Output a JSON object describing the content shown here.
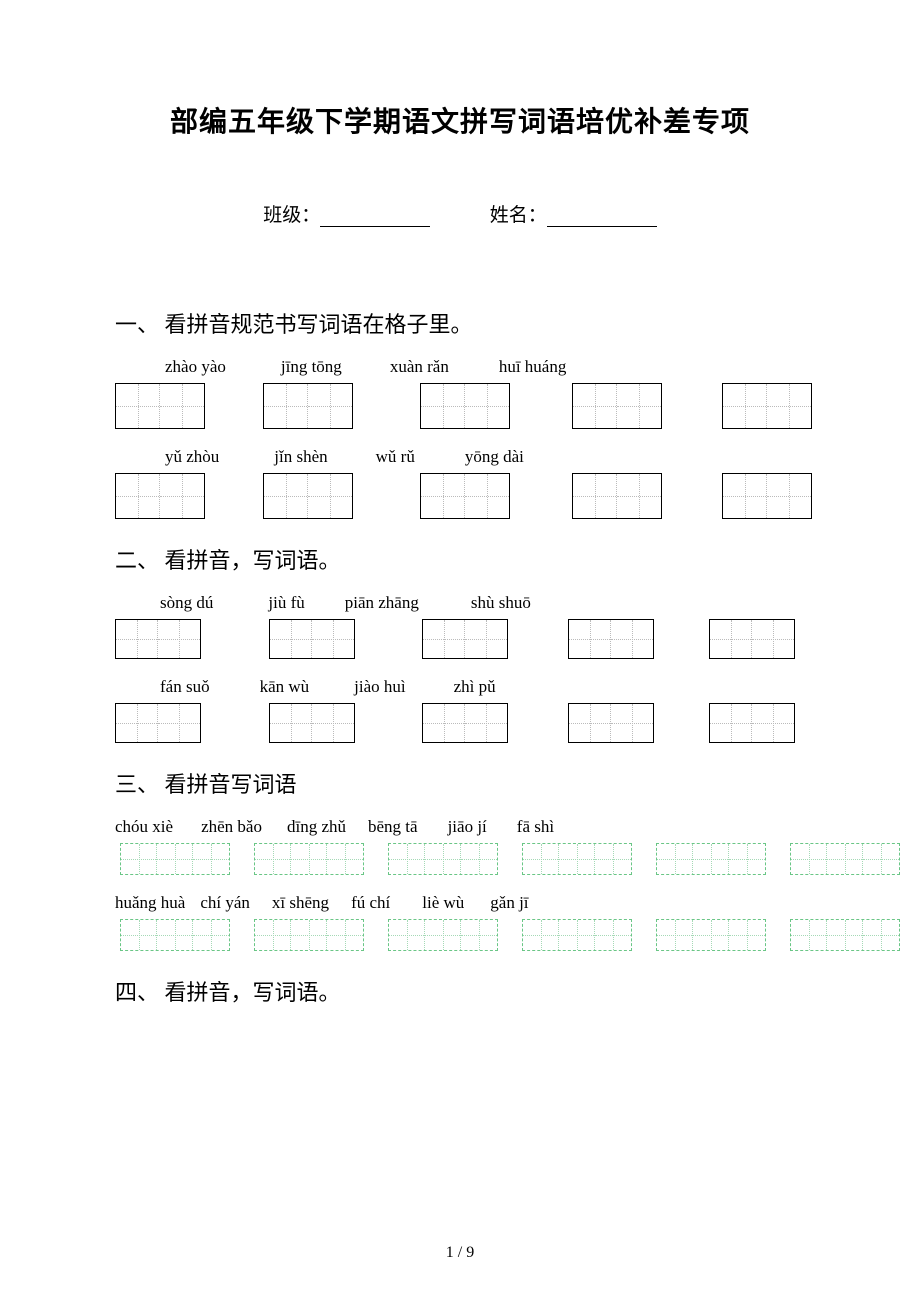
{
  "title": "部编五年级下学期语文拼写词语培优补差专项",
  "info": {
    "class_label": "班级：",
    "name_label": "姓名："
  },
  "sections": {
    "s1": {
      "heading": "一、 看拼音规范书写词语在格子里。",
      "row1": [
        "zhào yào",
        "jīng tōng",
        "xuàn rǎn",
        "huī huáng"
      ],
      "row2": [
        "yǔ zhòu",
        "jǐn shèn",
        "wǔ  rǔ",
        "yōng dài"
      ]
    },
    "s2": {
      "heading": "二、 看拼音，写词语。",
      "row1": [
        "sòng dú",
        "jiù fù",
        "piān zhāng",
        "shù shuō"
      ],
      "row2": [
        "fán suǒ",
        "kān wù",
        "jiào huì",
        "zhì pǔ"
      ]
    },
    "s3": {
      "heading": "三、 看拼音写词语",
      "row1": [
        "chóu xiè",
        "zhēn bǎo",
        "dīng zhǔ",
        "bēng tā",
        "jiāo jí",
        "fā shì"
      ],
      "row2": [
        "huǎng huà",
        "chí yán",
        "xī shēng",
        "fú chí",
        "liè wù",
        "gǎn jī"
      ]
    },
    "s4": {
      "heading": "四、 看拼音，写词语。"
    }
  },
  "page_number": "1 / 9",
  "style": {
    "s1_pinyin_gaps": [
      30,
      55,
      48,
      50
    ],
    "s1_box_gaps": [
      0,
      58,
      67,
      62,
      60
    ],
    "s2_pinyin_gaps_r1": [
      25,
      55,
      40,
      52
    ],
    "s2_pinyin_gaps_r2": [
      25,
      50,
      45,
      48
    ],
    "s2_box_gaps": [
      0,
      68,
      67,
      60,
      55
    ],
    "s3_pinyin_gaps_r1": [
      0,
      28,
      25,
      22,
      30,
      30
    ],
    "s3_pinyin_gaps_r2": [
      0,
      15,
      22,
      22,
      32,
      26
    ],
    "s3_box_gaps": [
      5,
      24,
      24,
      24,
      24,
      24
    ]
  }
}
